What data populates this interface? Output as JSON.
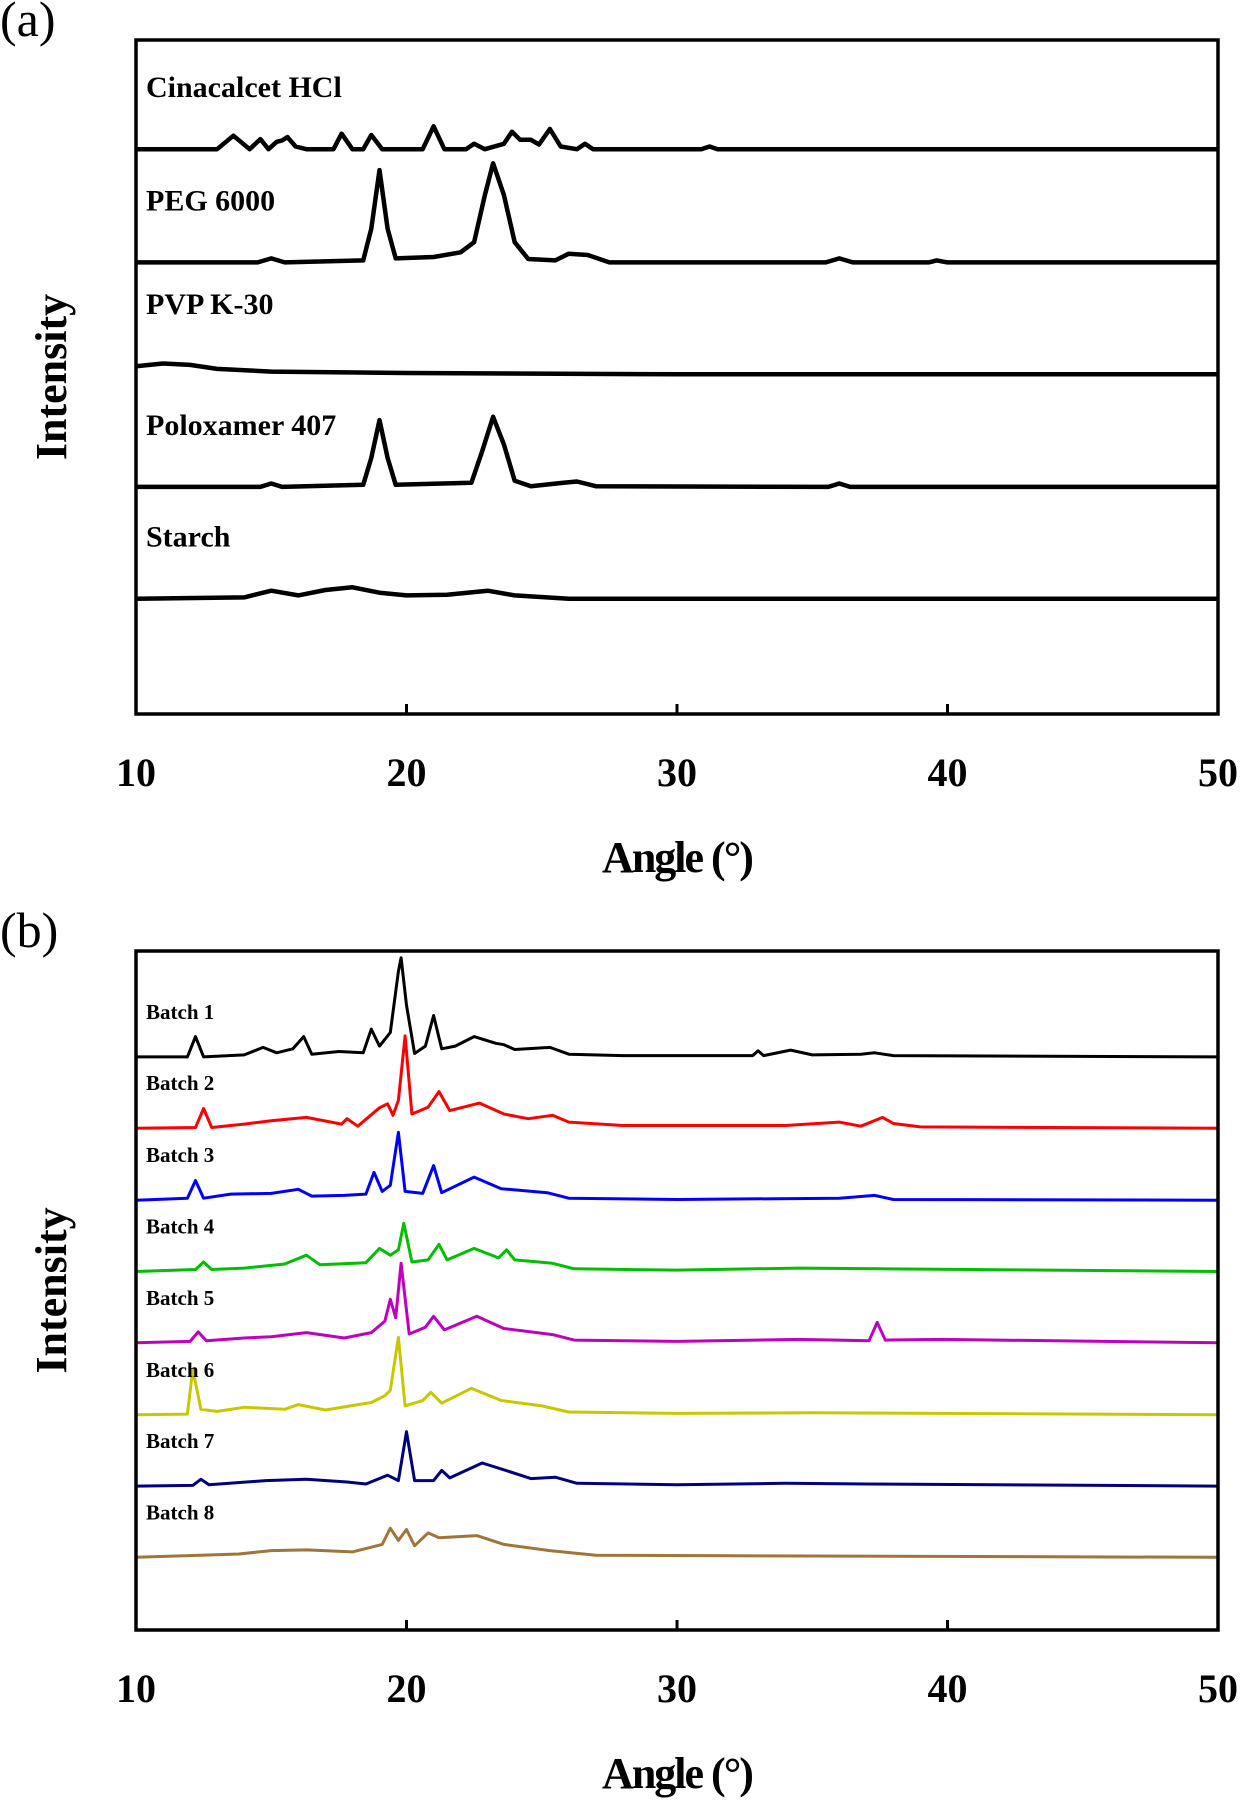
{
  "chart_data": [
    {
      "type": "line",
      "panel_label": "(a)",
      "x_label": "Angle (°)",
      "y_label": "Intensity",
      "xlim": [
        10,
        50
      ],
      "xticks": [
        10,
        20,
        30,
        40,
        50
      ],
      "ylim": [
        0,
        100
      ],
      "series": [
        {
          "name": "Cinacalcet HCl",
          "color": "#000000",
          "x": [
            10,
            13,
            13.6,
            14.2,
            14.6,
            14.9,
            15.2,
            15.4,
            15.6,
            15.9,
            16.3,
            17.3,
            17.6,
            18,
            18.4,
            18.7,
            19.1,
            20.6,
            21,
            21.4,
            22.2,
            22.5,
            22.9,
            23.6,
            23.9,
            24.2,
            24.6,
            24.9,
            25.3,
            25.7,
            26.3,
            26.6,
            26.9,
            30.9,
            31.2,
            31.5,
            50
          ],
          "values": [
            83.8,
            83.8,
            85.8,
            83.8,
            85.3,
            83.8,
            84.9,
            85.1,
            85.6,
            84.2,
            83.8,
            83.8,
            86.1,
            83.8,
            83.8,
            85.9,
            83.8,
            83.8,
            87.2,
            83.8,
            83.8,
            84.6,
            83.8,
            84.6,
            86.4,
            85.2,
            85.2,
            84.5,
            86.8,
            84.2,
            83.8,
            84.6,
            83.8,
            83.8,
            84.2,
            83.8,
            83.8
          ]
        },
        {
          "name": "PEG 6000",
          "color": "#000000",
          "x": [
            10,
            14.5,
            15,
            15.5,
            18.4,
            18.7,
            19,
            19.3,
            19.6,
            21,
            22,
            22.5,
            22.9,
            23.2,
            23.6,
            24,
            24.5,
            25.5,
            26,
            26.7,
            27.5,
            35.5,
            36,
            36.5,
            39.3,
            39.6,
            40,
            50
          ],
          "values": [
            67,
            67,
            67.6,
            67,
            67.3,
            72,
            80.7,
            72,
            67.6,
            67.8,
            68.5,
            70,
            77,
            81.7,
            77,
            70,
            67.5,
            67.3,
            68.3,
            68.1,
            67,
            67,
            67.6,
            67,
            67,
            67.3,
            67,
            67
          ]
        },
        {
          "name": "PVP K-30",
          "color": "#000000",
          "x": [
            10,
            11,
            12,
            13,
            15,
            20,
            30,
            50
          ],
          "values": [
            51.6,
            52,
            51.8,
            51.2,
            50.8,
            50.6,
            50.4,
            50.4
          ]
        },
        {
          "name": "Poloxamer 407",
          "color": "#000000",
          "x": [
            10,
            14.6,
            15,
            15.4,
            18.4,
            18.7,
            19,
            19.3,
            19.6,
            22.4,
            22.8,
            23.2,
            23.6,
            24,
            24.6,
            25.8,
            26.3,
            27,
            35.6,
            36,
            36.4,
            50
          ],
          "values": [
            33.7,
            33.7,
            34.2,
            33.7,
            34,
            38,
            43.6,
            38,
            34,
            34.3,
            39,
            44.1,
            40,
            34.6,
            33.8,
            34.3,
            34.5,
            33.8,
            33.7,
            34.2,
            33.7,
            33.7
          ]
        },
        {
          "name": "Starch",
          "color": "#000000",
          "x": [
            10,
            14,
            15,
            16,
            17,
            18,
            19,
            20,
            21.5,
            23,
            24,
            26,
            50
          ],
          "values": [
            17.1,
            17.3,
            18.3,
            17.6,
            18.4,
            18.8,
            18,
            17.6,
            17.7,
            18.3,
            17.6,
            17.1,
            17.1
          ]
        }
      ]
    },
    {
      "type": "line",
      "panel_label": "(b)",
      "x_label": "Angle (°)",
      "y_label": "Intensity",
      "xlim": [
        10,
        50
      ],
      "xticks": [
        10,
        20,
        30,
        40,
        50
      ],
      "ylim": [
        0,
        100
      ],
      "series": [
        {
          "name": "Batch 1",
          "color": "#000000",
          "x": [
            10,
            11.9,
            12.2,
            12.5,
            14,
            14.7,
            15.2,
            15.8,
            16.2,
            16.5,
            17.5,
            18.4,
            18.7,
            19,
            19.4,
            19.7,
            19.8,
            20,
            20.3,
            20.7,
            21,
            21.3,
            21.8,
            22.5,
            23.3,
            23.6,
            24,
            25.3,
            26,
            28,
            32.8,
            33,
            33.2,
            34.2,
            35,
            36.8,
            37.3,
            38,
            50
          ],
          "values": [
            84.4,
            84.4,
            87.4,
            84.4,
            84.7,
            85.8,
            85,
            85.6,
            87.4,
            84.8,
            85.2,
            85,
            88.5,
            86,
            88,
            97,
            99,
            92,
            84.9,
            86,
            90.5,
            85.6,
            86,
            87.4,
            86.4,
            86.2,
            85.5,
            85.8,
            84.8,
            84.6,
            84.6,
            85.3,
            84.6,
            85.4,
            84.7,
            84.8,
            85,
            84.6,
            84.4
          ]
        },
        {
          "name": "Batch 2",
          "color": "#ff0000",
          "x": [
            10,
            12.2,
            12.5,
            12.8,
            14,
            15,
            16.3,
            17.6,
            17.8,
            18.2,
            19,
            19.3,
            19.5,
            19.7,
            19.95,
            20.2,
            20.8,
            21.2,
            21.6,
            22.7,
            23.6,
            24.5,
            25.4,
            26,
            28,
            34,
            36,
            36.8,
            37.6,
            38,
            39,
            50
          ],
          "values": [
            73.9,
            74,
            76.8,
            74,
            74.5,
            75,
            75.5,
            74.5,
            75.3,
            74.2,
            76.9,
            77.5,
            75.8,
            78,
            87.5,
            76,
            77,
            79.3,
            76.5,
            77.6,
            76,
            75.3,
            75.8,
            74.8,
            74.3,
            74.3,
            74.8,
            74.2,
            75.5,
            74.6,
            74.1,
            73.9
          ]
        },
        {
          "name": "Batch 3",
          "color": "#0000ff",
          "x": [
            10,
            11.9,
            12.2,
            12.5,
            13.5,
            15,
            16,
            16.5,
            17.7,
            18.5,
            18.8,
            19.1,
            19.4,
            19.7,
            19.95,
            20.6,
            21,
            21.3,
            22.5,
            23.5,
            25.2,
            26,
            30,
            36,
            37.3,
            38,
            50
          ],
          "values": [
            63.3,
            63.6,
            66.2,
            63.6,
            64.2,
            64.3,
            64.9,
            63.9,
            64,
            64.2,
            67.4,
            64.6,
            65.5,
            73.3,
            64.6,
            64.3,
            68.4,
            64.4,
            66.7,
            65,
            64.4,
            63.6,
            63.4,
            63.6,
            64,
            63.4,
            63.3
          ]
        },
        {
          "name": "Batch 4",
          "color": "#00c000",
          "x": [
            10,
            12.2,
            12.5,
            12.8,
            14,
            15.5,
            16.3,
            16.8,
            18.5,
            19,
            19.4,
            19.7,
            19.9,
            20.2,
            20.8,
            21.2,
            21.5,
            22.5,
            23.4,
            23.7,
            24,
            25.4,
            26.2,
            30,
            34.5,
            37.5,
            50
          ],
          "values": [
            52.8,
            53.1,
            54.2,
            53.1,
            53.3,
            53.9,
            55.2,
            53.8,
            54.1,
            56.2,
            55.2,
            56,
            59.9,
            54.2,
            54.5,
            56.8,
            54.5,
            56.2,
            54.8,
            56,
            54.5,
            54,
            53.2,
            53,
            53.3,
            53.2,
            52.8
          ]
        },
        {
          "name": "Batch 5",
          "color": "#c000c0",
          "x": [
            10,
            12,
            12.3,
            12.6,
            14,
            15,
            16.3,
            17.7,
            18.7,
            19.2,
            19.4,
            19.6,
            19.8,
            20.1,
            20.7,
            21,
            21.4,
            22.6,
            23.6,
            25.4,
            26.2,
            30,
            34.5,
            37.1,
            37.4,
            37.7,
            39.8,
            50
          ],
          "values": [
            42.3,
            42.5,
            43.9,
            42.6,
            43,
            43.2,
            43.8,
            43,
            43.8,
            45.5,
            48.7,
            46,
            54,
            43.6,
            44.6,
            46.2,
            44.2,
            46.2,
            44.4,
            43.5,
            42.7,
            42.5,
            42.8,
            42.6,
            45.3,
            42.7,
            42.8,
            42.3
          ]
        },
        {
          "name": "Batch 6",
          "color": "#c8c800",
          "x": [
            10,
            11.9,
            12.1,
            12.4,
            13,
            14,
            15.5,
            16,
            17,
            18.7,
            19.2,
            19.4,
            19.7,
            19.95,
            20.6,
            20.9,
            21.3,
            22.4,
            23.5,
            25,
            26,
            30,
            35,
            50
          ],
          "values": [
            31.7,
            31.8,
            38.4,
            32.5,
            32.2,
            32.8,
            32.5,
            33.2,
            32.4,
            33.5,
            34.5,
            35.3,
            43.1,
            33,
            33.8,
            35,
            33.4,
            35.6,
            33.8,
            33,
            32.1,
            31.9,
            32,
            31.7
          ]
        },
        {
          "name": "Batch 7",
          "color": "#000080",
          "x": [
            10,
            12.1,
            12.4,
            12.7,
            14.8,
            16.3,
            17.8,
            18.5,
            19.3,
            19.7,
            20,
            20.3,
            21,
            21.3,
            21.6,
            22.8,
            23.6,
            24.6,
            25.5,
            26.3,
            30,
            34,
            37,
            50
          ],
          "values": [
            21.2,
            21.3,
            22.2,
            21.4,
            22,
            22.2,
            21.8,
            21.5,
            22.8,
            22,
            29.2,
            22,
            22,
            23.5,
            22.4,
            24.6,
            23.6,
            22.3,
            22.5,
            21.6,
            21.4,
            21.6,
            21.5,
            21.2
          ]
        },
        {
          "name": "Batch 8",
          "color": "#a0753a",
          "x": [
            10,
            12.4,
            13.8,
            15,
            16.3,
            18,
            19.1,
            19.4,
            19.7,
            20,
            20.3,
            20.8,
            21.2,
            22.6,
            23.6,
            25.3,
            27,
            35,
            50
          ],
          "values": [
            10.7,
            11,
            11.2,
            11.7,
            11.8,
            11.5,
            12.6,
            15,
            13.2,
            14.8,
            12.4,
            14.3,
            13.6,
            13.9,
            12.6,
            11.7,
            11,
            10.9,
            10.7
          ]
        }
      ]
    }
  ]
}
